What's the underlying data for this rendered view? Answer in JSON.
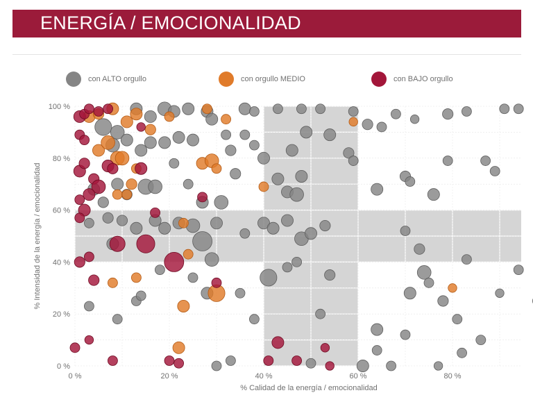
{
  "header": {
    "title": "ENERGÍA / EMOCIONALIDAD"
  },
  "legend": [
    {
      "label": "con ALTO orgullo",
      "color": "#858585"
    },
    {
      "label": "con orgullo MEDIO",
      "color": "#e07b2a"
    },
    {
      "label": "con BAJO orgullo",
      "color": "#a3163a"
    }
  ],
  "colors": {
    "title_bg": "#9b1b3a",
    "band": "#d5d5d5",
    "alto": "#858585",
    "medio": "#e07b2a",
    "bajo": "#a3163a"
  },
  "chart_data": {
    "type": "scatter",
    "xlabel": "% Calidad de la energía / emocionalidad",
    "ylabel": "% Intensidad de la energía / emocionalidad",
    "xlim": [
      0,
      100
    ],
    "ylim": [
      0,
      100
    ],
    "xticks": [
      0,
      20,
      40,
      60,
      80
    ],
    "yticks": [
      0,
      20,
      40,
      60,
      80,
      100
    ],
    "xtick_labels": [
      "0 %",
      "20 %",
      "40 %",
      "60 %",
      "80 %"
    ],
    "ytick_labels": [
      "0 %",
      "20 %",
      "40 %",
      "60 %",
      "80 %",
      "100 %"
    ],
    "grid": true,
    "legend_position": "top",
    "highlight_bands": [
      {
        "axis": "x",
        "from": 40,
        "to": 60
      },
      {
        "axis": "y",
        "from": 40,
        "to": 60
      }
    ],
    "series": [
      {
        "name": "con ALTO orgullo",
        "points": [
          [
            6,
            92,
            3
          ],
          [
            9,
            90,
            2
          ],
          [
            13,
            99,
            1.5
          ],
          [
            16,
            96,
            1.5
          ],
          [
            19,
            99,
            2
          ],
          [
            21,
            98,
            1.5
          ],
          [
            24,
            99,
            1.5
          ],
          [
            28,
            98,
            1.5
          ],
          [
            36,
            99,
            1.5
          ],
          [
            38,
            98,
            1
          ],
          [
            43,
            99,
            1
          ],
          [
            48,
            99,
            1
          ],
          [
            52,
            99,
            1
          ],
          [
            59,
            98,
            1
          ],
          [
            62,
            93,
            1.2
          ],
          [
            65,
            92,
            1
          ],
          [
            68,
            97,
            1
          ],
          [
            72,
            95,
            0.8
          ],
          [
            79,
            97,
            1.2
          ],
          [
            83,
            98,
            1
          ],
          [
            91,
            99,
            1
          ],
          [
            94,
            99,
            1
          ],
          [
            99,
            90,
            1
          ],
          [
            8,
            85,
            2
          ],
          [
            11,
            87,
            1.5
          ],
          [
            14,
            83,
            1.5
          ],
          [
            16,
            86,
            1.5
          ],
          [
            19,
            86,
            1.5
          ],
          [
            22,
            88,
            1.5
          ],
          [
            25,
            87,
            1.5
          ],
          [
            29,
            95,
            1.5
          ],
          [
            32,
            89,
            1
          ],
          [
            36,
            89,
            1
          ],
          [
            38,
            85,
            1
          ],
          [
            40,
            80,
            1.5
          ],
          [
            46,
            83,
            1.5
          ],
          [
            49,
            90,
            1.5
          ],
          [
            54,
            89,
            1.5
          ],
          [
            58,
            82,
            1.2
          ],
          [
            59,
            79,
            1
          ],
          [
            4,
            68,
            1.5
          ],
          [
            6,
            63,
            1.2
          ],
          [
            9,
            70,
            1.5
          ],
          [
            11,
            66,
            1.2
          ],
          [
            15,
            69,
            2.5
          ],
          [
            17,
            69,
            2
          ],
          [
            21,
            78,
            1
          ],
          [
            24,
            70,
            1
          ],
          [
            27,
            63,
            1.5
          ],
          [
            31,
            63,
            2
          ],
          [
            33,
            83,
            1.2
          ],
          [
            34,
            74,
            1.2
          ],
          [
            43,
            72,
            1.5
          ],
          [
            45,
            67,
            1.5
          ],
          [
            47,
            66,
            2
          ],
          [
            48,
            73,
            1.5
          ],
          [
            64,
            68,
            1.5
          ],
          [
            70,
            73,
            1.2
          ],
          [
            71,
            71,
            1
          ],
          [
            76,
            66,
            1.5
          ],
          [
            79,
            79,
            1
          ],
          [
            87,
            79,
            1
          ],
          [
            89,
            75,
            1
          ],
          [
            3,
            55,
            1
          ],
          [
            7,
            57,
            1.2
          ],
          [
            10,
            56,
            1.2
          ],
          [
            13,
            53,
            1.5
          ],
          [
            17,
            56,
            1.5
          ],
          [
            19,
            53,
            1.5
          ],
          [
            22,
            55,
            1.5
          ],
          [
            25,
            54,
            2
          ],
          [
            27,
            48,
            4
          ],
          [
            29,
            41,
            2
          ],
          [
            30,
            55,
            1.5
          ],
          [
            36,
            51,
            1
          ],
          [
            40,
            55,
            1.5
          ],
          [
            42,
            53,
            1.5
          ],
          [
            45,
            56,
            1.5
          ],
          [
            48,
            49,
            2
          ],
          [
            50,
            51,
            1.5
          ],
          [
            53,
            54,
            1.2
          ],
          [
            70,
            52,
            1
          ],
          [
            73,
            45,
            1.2
          ],
          [
            74,
            36,
            2
          ],
          [
            75,
            32,
            1
          ],
          [
            83,
            41,
            1
          ],
          [
            94,
            37,
            1
          ],
          [
            8,
            47,
            1.5
          ],
          [
            13,
            25,
            1
          ],
          [
            14,
            27,
            1
          ],
          [
            18,
            37,
            1
          ],
          [
            25,
            34,
            1
          ],
          [
            28,
            28,
            1.5
          ],
          [
            35,
            28,
            1
          ],
          [
            41,
            34,
            3
          ],
          [
            45,
            38,
            1
          ],
          [
            47,
            40,
            1
          ],
          [
            54,
            35,
            1.2
          ],
          [
            71,
            28,
            1.5
          ],
          [
            78,
            25,
            1.2
          ],
          [
            90,
            28,
            0.8
          ],
          [
            98,
            25,
            1
          ],
          [
            3,
            23,
            1
          ],
          [
            9,
            18,
            1
          ],
          [
            38,
            18,
            1
          ],
          [
            52,
            20,
            1
          ],
          [
            64,
            14,
            1.5
          ],
          [
            70,
            12,
            1
          ],
          [
            81,
            18,
            1
          ],
          [
            86,
            10,
            1
          ],
          [
            30,
            0,
            1
          ],
          [
            33,
            2,
            1
          ],
          [
            50,
            1,
            1
          ],
          [
            61,
            0,
            1.5
          ],
          [
            64,
            6,
            1
          ],
          [
            67,
            0,
            1
          ],
          [
            77,
            0,
            0.8
          ],
          [
            82,
            5,
            1
          ]
        ]
      },
      {
        "name": "con orgullo MEDIO",
        "points": [
          [
            3,
            96,
            1.5
          ],
          [
            5,
            97,
            1.2
          ],
          [
            8,
            99,
            1.5
          ],
          [
            11,
            94,
            1.5
          ],
          [
            13,
            97,
            1.5
          ],
          [
            16,
            91,
            1.2
          ],
          [
            20,
            96,
            1
          ],
          [
            28,
            99,
            1
          ],
          [
            32,
            95,
            1
          ],
          [
            5,
            83,
            1.5
          ],
          [
            7,
            86,
            2
          ],
          [
            9,
            80,
            2
          ],
          [
            10,
            80,
            2
          ],
          [
            12,
            70,
            1.2
          ],
          [
            13,
            76,
            1
          ],
          [
            27,
            78,
            1.5
          ],
          [
            29,
            79,
            2
          ],
          [
            30,
            76,
            1
          ],
          [
            9,
            66,
            1
          ],
          [
            11,
            66,
            1
          ],
          [
            40,
            69,
            1
          ],
          [
            59,
            94,
            0.8
          ],
          [
            23,
            55,
            1
          ],
          [
            24,
            43,
            1
          ],
          [
            8,
            32,
            1
          ],
          [
            13,
            34,
            1
          ],
          [
            23,
            23,
            1.5
          ],
          [
            30,
            28,
            3
          ],
          [
            22,
            7,
            1.5
          ],
          [
            80,
            30,
            0.8
          ]
        ]
      },
      {
        "name": "con BAJO orgullo",
        "points": [
          [
            1,
            96,
            1.5
          ],
          [
            2,
            97,
            1
          ],
          [
            3,
            99,
            1
          ],
          [
            5,
            98,
            1
          ],
          [
            7,
            99,
            1
          ],
          [
            1,
            89,
            1
          ],
          [
            2,
            87,
            1
          ],
          [
            14,
            92,
            0.8
          ],
          [
            1,
            75,
            1.5
          ],
          [
            2,
            78,
            1.2
          ],
          [
            4,
            72,
            1.2
          ],
          [
            5,
            69,
            2
          ],
          [
            3,
            66,
            1.5
          ],
          [
            1,
            64,
            1
          ],
          [
            2,
            60,
            1.5
          ],
          [
            1,
            57,
            1
          ],
          [
            7,
            77,
            1.5
          ],
          [
            8,
            76,
            1.2
          ],
          [
            14,
            76,
            1.5
          ],
          [
            17,
            59,
            1
          ],
          [
            27,
            65,
            1
          ],
          [
            9,
            47,
            2.5
          ],
          [
            15,
            47,
            3.5
          ],
          [
            21,
            40,
            4
          ],
          [
            1,
            40,
            1.2
          ],
          [
            3,
            42,
            1
          ],
          [
            4,
            33,
            1.2
          ],
          [
            30,
            32,
            1
          ],
          [
            43,
            9,
            1.5
          ],
          [
            3,
            10,
            0.8
          ],
          [
            0,
            7,
            1
          ],
          [
            8,
            2,
            1
          ],
          [
            20,
            2,
            1
          ],
          [
            22,
            1,
            1
          ],
          [
            41,
            2,
            1
          ],
          [
            47,
            2,
            1
          ],
          [
            53,
            7,
            0.8
          ],
          [
            54,
            0,
            0.8
          ]
        ]
      }
    ]
  }
}
